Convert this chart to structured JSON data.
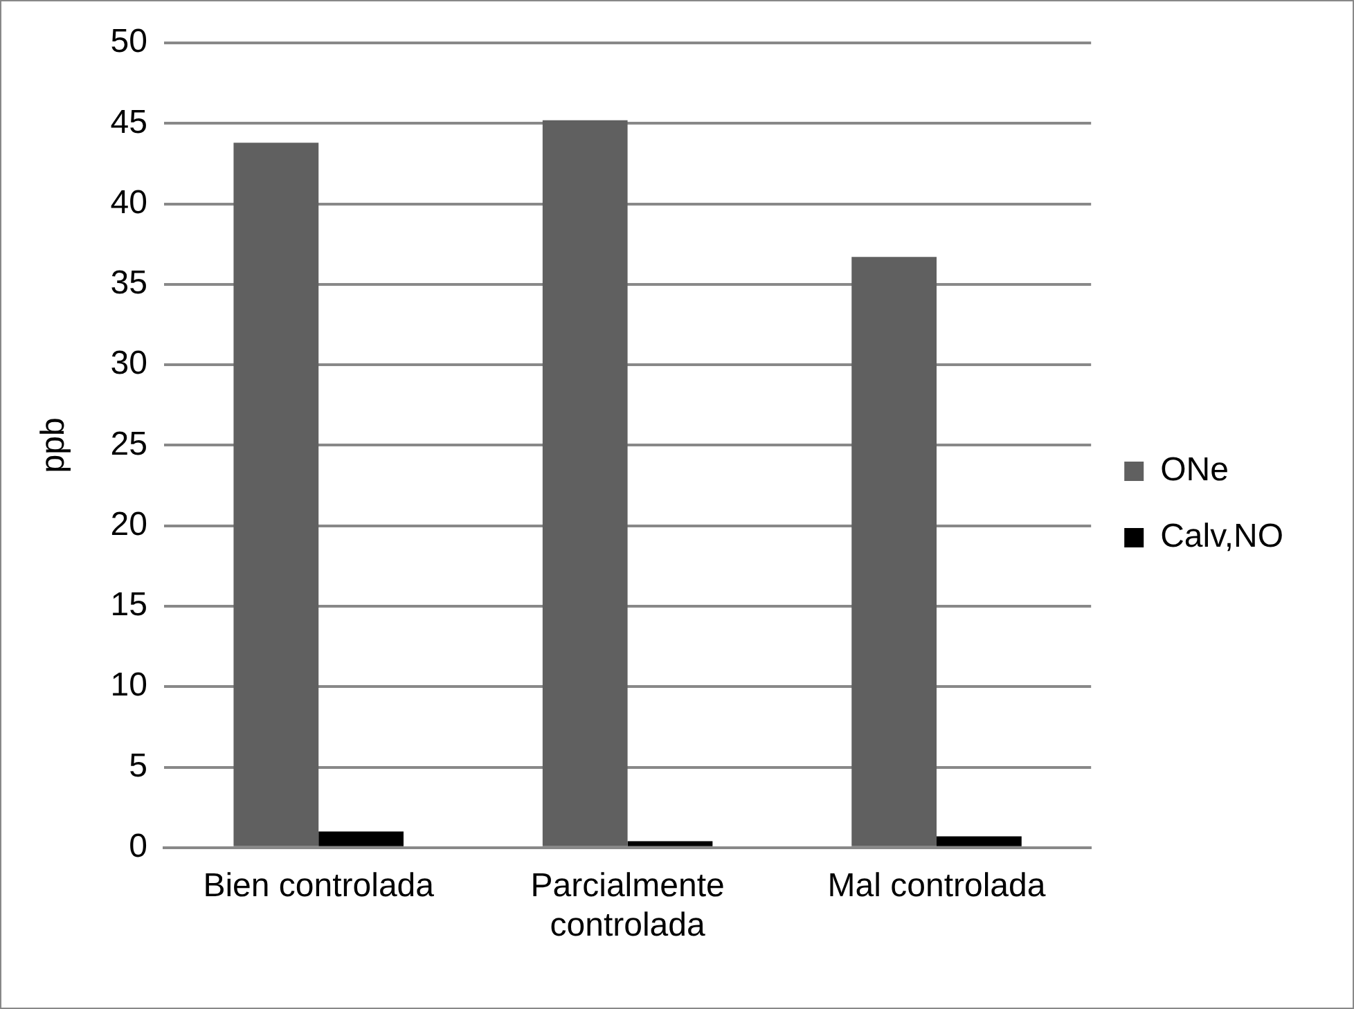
{
  "chart_data": {
    "type": "bar",
    "ylabel": "ppb",
    "categories": [
      "Bien controlada",
      "Parcialmente controlada",
      "Mal controlada"
    ],
    "series": [
      {
        "name": "ONe",
        "color": "#606060",
        "values": [
          43.8,
          45.2,
          36.7
        ]
      },
      {
        "name": "Calv,NO",
        "color": "#000000",
        "values": [
          1.0,
          0.4,
          0.7
        ]
      }
    ],
    "ylim": [
      0,
      50
    ],
    "yticks": [
      0,
      5,
      10,
      15,
      20,
      25,
      30,
      35,
      40,
      45,
      50
    ],
    "grid": "y",
    "legend": "right"
  }
}
